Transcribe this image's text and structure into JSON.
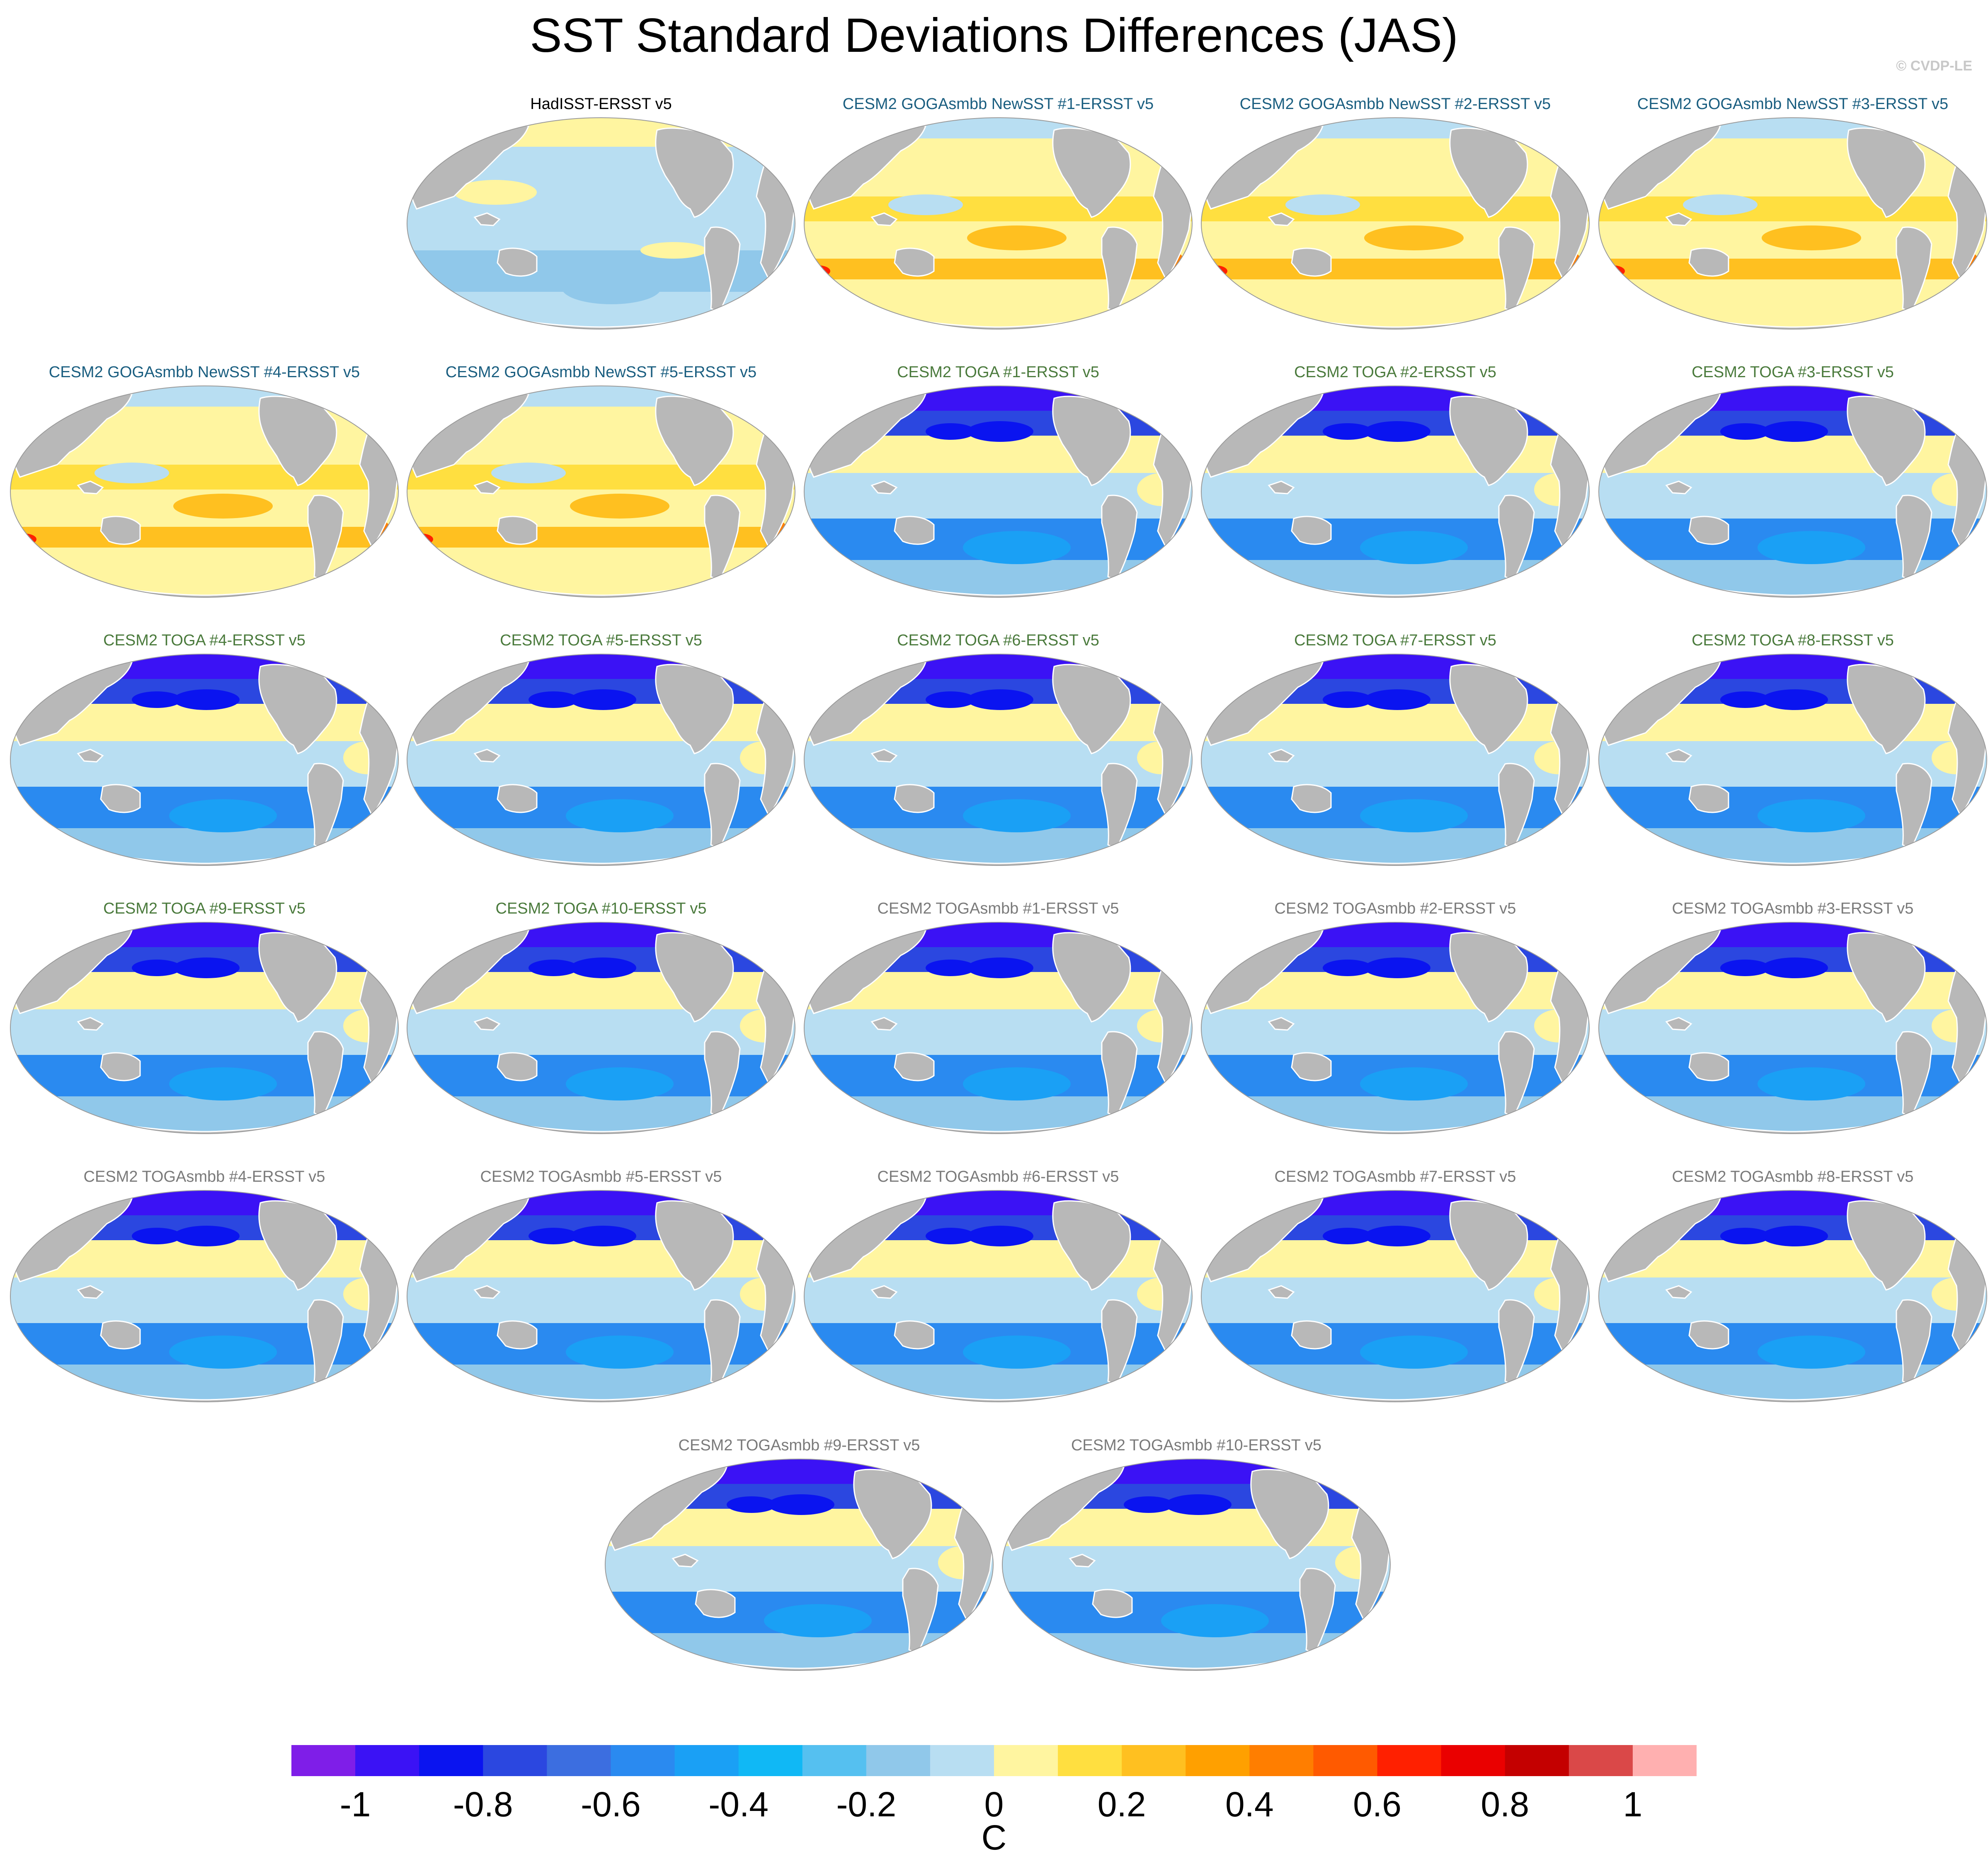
{
  "title": "SST Standard Deviations Differences (JAS)",
  "credit": "© CVDP-LE",
  "colors": {
    "land": "#b8b8b8",
    "title_obs": "#000000",
    "title_goga": "#1a5e80",
    "title_toga": "#4a7a3c",
    "title_togasmbb": "#7a7a7a"
  },
  "panels": [
    {
      "title": "HadISST-ERSST v5",
      "group": "obs"
    },
    {
      "title": "CESM2 GOGAsmbb NewSST #1-ERSST v5",
      "group": "goga"
    },
    {
      "title": "CESM2 GOGAsmbb NewSST #2-ERSST v5",
      "group": "goga"
    },
    {
      "title": "CESM2 GOGAsmbb NewSST #3-ERSST v5",
      "group": "goga"
    },
    {
      "title": "CESM2 GOGAsmbb NewSST #4-ERSST v5",
      "group": "goga"
    },
    {
      "title": "CESM2 GOGAsmbb NewSST #5-ERSST v5",
      "group": "goga"
    },
    {
      "title": "CESM2 TOGA #1-ERSST v5",
      "group": "toga"
    },
    {
      "title": "CESM2 TOGA #2-ERSST v5",
      "group": "toga"
    },
    {
      "title": "CESM2 TOGA #3-ERSST v5",
      "group": "toga"
    },
    {
      "title": "CESM2 TOGA #4-ERSST v5",
      "group": "toga"
    },
    {
      "title": "CESM2 TOGA #5-ERSST v5",
      "group": "toga"
    },
    {
      "title": "CESM2 TOGA #6-ERSST v5",
      "group": "toga"
    },
    {
      "title": "CESM2 TOGA #7-ERSST v5",
      "group": "toga"
    },
    {
      "title": "CESM2 TOGA #8-ERSST v5",
      "group": "toga"
    },
    {
      "title": "CESM2 TOGA #9-ERSST v5",
      "group": "toga"
    },
    {
      "title": "CESM2 TOGA #10-ERSST v5",
      "group": "toga"
    },
    {
      "title": "CESM2 TOGAsmbb #1-ERSST v5",
      "group": "togasmbb"
    },
    {
      "title": "CESM2 TOGAsmbb #2-ERSST v5",
      "group": "togasmbb"
    },
    {
      "title": "CESM2 TOGAsmbb #3-ERSST v5",
      "group": "togasmbb"
    },
    {
      "title": "CESM2 TOGAsmbb #4-ERSST v5",
      "group": "togasmbb"
    },
    {
      "title": "CESM2 TOGAsmbb #5-ERSST v5",
      "group": "togasmbb"
    },
    {
      "title": "CESM2 TOGAsmbb #6-ERSST v5",
      "group": "togasmbb"
    },
    {
      "title": "CESM2 TOGAsmbb #7-ERSST v5",
      "group": "togasmbb"
    },
    {
      "title": "CESM2 TOGAsmbb #8-ERSST v5",
      "group": "togasmbb"
    },
    {
      "title": "CESM2 TOGAsmbb #9-ERSST v5",
      "group": "togasmbb"
    },
    {
      "title": "CESM2 TOGAsmbb #10-ERSST v5",
      "group": "togasmbb"
    }
  ],
  "colorbar": {
    "unit": "C",
    "levels": [
      -1,
      -0.9,
      -0.8,
      -0.7,
      -0.6,
      -0.5,
      -0.4,
      -0.3,
      -0.2,
      -0.1,
      0,
      0.1,
      0.2,
      0.3,
      0.4,
      0.5,
      0.6,
      0.7,
      0.8,
      0.9,
      1
    ],
    "labels": [
      "-1",
      "-0.8",
      "-0.6",
      "-0.4",
      "-0.2",
      "0",
      "0.2",
      "0.4",
      "0.6",
      "0.8",
      "1"
    ],
    "colors": [
      "#7f1ee8",
      "#3b12f5",
      "#0a14f0",
      "#2b47e0",
      "#3c6ee0",
      "#2a8af0",
      "#1aa0f5",
      "#10b8f5",
      "#55c0f0",
      "#90c8ea",
      "#b8def2",
      "#fff5a0",
      "#ffdf40",
      "#ffc020",
      "#ffa000",
      "#ff7e00",
      "#ff5a00",
      "#ff2000",
      "#ea0000",
      "#c40000",
      "#da4848",
      "#ffb0b0"
    ]
  }
}
